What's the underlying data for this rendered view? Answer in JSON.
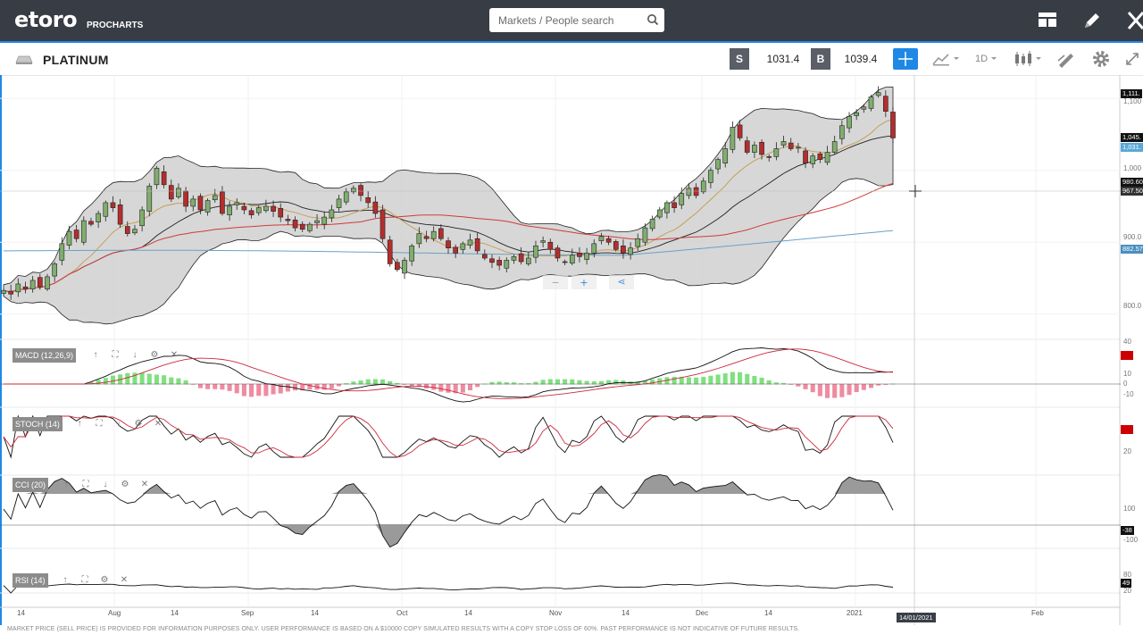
{
  "app": {
    "logo": "etoro",
    "logo_sub": "PROCHARTS",
    "search_placeholder": "Markets / People search"
  },
  "instrument": {
    "name": "PLATINUM",
    "sell_label": "S",
    "sell_price": "1031.4",
    "buy_label": "B",
    "buy_price": "1039.4",
    "timeframe": "1D"
  },
  "indicators": {
    "macd": "MACD (12,26,9)",
    "stoch": "STOCH (14)",
    "cci": "CCI (20)",
    "rsi": "RSI (14)"
  },
  "price_axis": {
    "tag_high": "1,111.",
    "lbl_1100": "1,100",
    "tag_1045": "1,045.",
    "tag_1031": "1,031.",
    "lbl_1000": "1,000",
    "tag_980": "980.60",
    "tag_967": "967.50",
    "lbl_900": "900.0",
    "tag_882": "882.57",
    "lbl_800": "800.0"
  },
  "macd_axis": {
    "v40": "40",
    "v10": "10",
    "v0": "0",
    "vneg10": "-10"
  },
  "stoch_axis": {
    "v20": "20"
  },
  "cci_axis": {
    "v100": "100",
    "tag": "-38",
    "vneg100": "-100"
  },
  "rsi_axis": {
    "v80": "80",
    "tag": "49",
    "v20": "20"
  },
  "x_axis": {
    "l1": "14",
    "l2": "Aug",
    "l3": "14",
    "l4": "Sep",
    "l5": "14",
    "l6": "Oct",
    "l7": "14",
    "l8": "Nov",
    "l9": "14",
    "l10": "Dec",
    "l11": "14",
    "l12": "2021",
    "l13": "Feb",
    "cursor_date": "14/01/2021"
  },
  "footer": {
    "disclaimer": "MARKET PRICE (SELL PRICE) IS PROVIDED FOR INFORMATION PURPOSES ONLY. USER PERFORMANCE IS BASED ON A $10000 COPY SIMULATED RESULTS WITH A COPY STOP LOSS OF 60%. PAST PERFORMANCE IS NOT INDICATIVE OF FUTURE RESULTS."
  },
  "colors": {
    "topbar": "#383c44",
    "accent": "#1e88e5",
    "bull": "#7fae6e",
    "bear": "#b52d2d",
    "band": "#d0d0d0",
    "ma_red": "#d03a3a",
    "ma_blue": "#6aa0c8",
    "ma_orange": "#c49a4a"
  },
  "chart_data": {
    "type": "candlestick",
    "instrument": "PLATINUM",
    "timeframe": "1D",
    "x_ticks": [
      "14",
      "Aug",
      "14",
      "Sep",
      "14",
      "Oct",
      "14",
      "Nov",
      "14",
      "Dec",
      "14",
      "2021",
      "Feb"
    ],
    "y_ticks": [
      800,
      900,
      1000,
      1100
    ],
    "ylim": [
      765,
      1125
    ],
    "last_close": 1045,
    "bid": 1031.4,
    "ask": 1039.4,
    "closes": [
      833,
      828,
      842,
      835,
      847,
      838,
      852,
      870,
      898,
      915,
      905,
      930,
      925,
      940,
      955,
      948,
      925,
      912,
      918,
      945,
      978,
      1003,
      980,
      960,
      975,
      950,
      960,
      945,
      958,
      965,
      940,
      950,
      955,
      945,
      938,
      948,
      950,
      943,
      935,
      930,
      920,
      918,
      925,
      930,
      935,
      945,
      960,
      970,
      975,
      965,
      955,
      940,
      905,
      870,
      862,
      875,
      895,
      912,
      905,
      915,
      905,
      892,
      885,
      898,
      903,
      888,
      878,
      872,
      868,
      875,
      880,
      873,
      878,
      895,
      902,
      890,
      878,
      872,
      882,
      880,
      885,
      898,
      908,
      900,
      890,
      885,
      892,
      905,
      920,
      932,
      945,
      955,
      948,
      968,
      975,
      965,
      985,
      1000,
      1015,
      1030,
      1060,
      1045,
      1025,
      1035,
      1022,
      1018,
      1030,
      1040,
      1030,
      1032,
      1010,
      1020,
      1015,
      1025,
      1040,
      1062,
      1075,
      1080,
      1088,
      1102,
      1108,
      1082,
      1045
    ],
    "bands": {
      "upper_approx": "Bollinger",
      "ma_red": "long MA",
      "ma_blue": "200 MA"
    }
  }
}
